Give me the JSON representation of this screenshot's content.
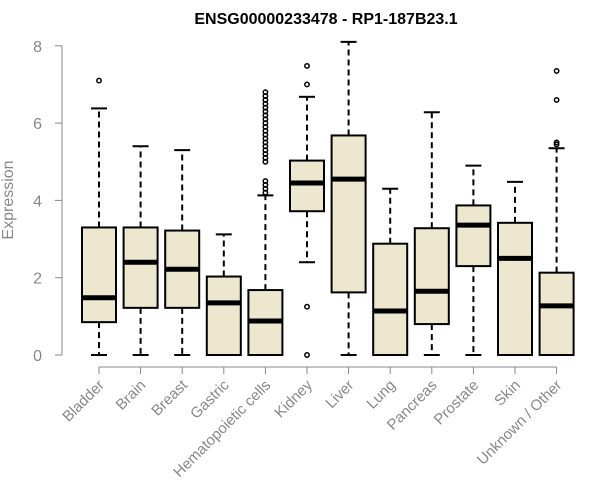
{
  "chart_data": {
    "type": "box",
    "title": "ENSG00000233478 - RP1-187B23.1",
    "xlabel": "",
    "ylabel": "Expression",
    "ylim": [
      0,
      8.2
    ],
    "yticks": [
      0,
      2,
      4,
      6,
      8
    ],
    "box_color": "#ede7d0",
    "categories": [
      "Bladder",
      "Brain",
      "Breast",
      "Gastric",
      "Hematopoietic cells",
      "Kidney",
      "Liver",
      "Lung",
      "Pancreas",
      "Prostate",
      "Skin",
      "Unknown / Other"
    ],
    "boxes": [
      {
        "min": 0,
        "q1": 0.85,
        "median": 1.48,
        "q3": 3.3,
        "max": 6.38,
        "outliers": [
          7.1
        ]
      },
      {
        "min": 0,
        "q1": 1.22,
        "median": 2.4,
        "q3": 3.3,
        "max": 5.4,
        "outliers": []
      },
      {
        "min": 0,
        "q1": 1.22,
        "median": 2.22,
        "q3": 3.22,
        "max": 5.3,
        "outliers": []
      },
      {
        "min": 0,
        "q1": 0,
        "median": 1.35,
        "q3": 2.03,
        "max": 3.12,
        "outliers": []
      },
      {
        "min": 0,
        "q1": 0,
        "median": 0.88,
        "q3": 1.68,
        "max": 4.13,
        "outliers": [
          4.2,
          4.3,
          4.4,
          4.5,
          5.0,
          5.1,
          5.2,
          5.3,
          5.4,
          5.5,
          5.6,
          5.7,
          5.8,
          5.9,
          6.0,
          6.1,
          6.2,
          6.3,
          6.4,
          6.5,
          6.6,
          6.7,
          6.8
        ]
      },
      {
        "min": 2.4,
        "q1": 3.72,
        "median": 4.45,
        "q3": 5.03,
        "max": 6.68,
        "outliers": [
          0.0,
          1.25,
          7.0,
          7.48
        ]
      },
      {
        "min": 0,
        "q1": 1.62,
        "median": 4.55,
        "q3": 5.68,
        "max": 8.1,
        "outliers": []
      },
      {
        "min": 0,
        "q1": 0,
        "median": 1.14,
        "q3": 2.88,
        "max": 4.3,
        "outliers": []
      },
      {
        "min": 0,
        "q1": 0.8,
        "median": 1.65,
        "q3": 3.28,
        "max": 6.28,
        "outliers": []
      },
      {
        "min": 0,
        "q1": 2.3,
        "median": 3.36,
        "q3": 3.87,
        "max": 4.9,
        "outliers": []
      },
      {
        "min": 0,
        "q1": 0,
        "median": 2.5,
        "q3": 3.42,
        "max": 4.48,
        "outliers": []
      },
      {
        "min": 0,
        "q1": 0,
        "median": 1.27,
        "q3": 2.13,
        "max": 5.35,
        "outliers": [
          5.45,
          5.5,
          6.6,
          7.35
        ]
      }
    ]
  }
}
